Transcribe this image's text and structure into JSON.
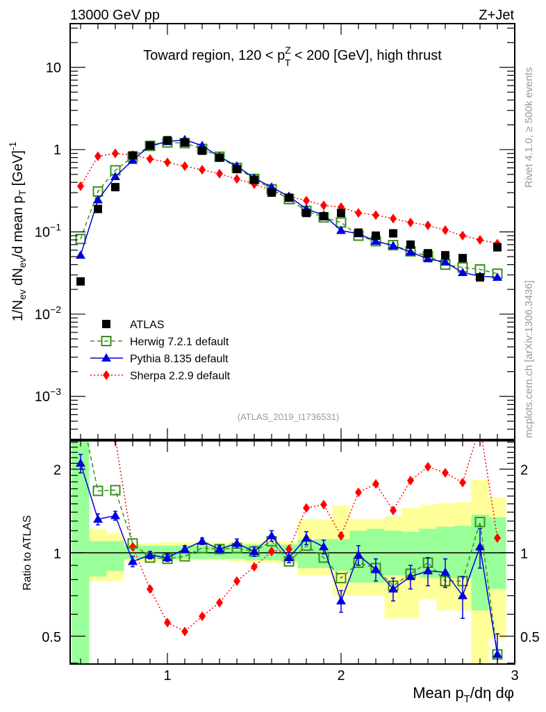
{
  "header": {
    "left_label": "13000 GeV pp",
    "right_label": "Z+Jet"
  },
  "side_labels": {
    "rivet": "Rivet 4.1.0, ≥ 500k events",
    "mcplots": "mcplots.cern.ch [arXiv:1306.3436]"
  },
  "chart_data": [
    {
      "type": "line",
      "panel": "main",
      "title": "Toward region, 120 < p_T^Z < 200 [GeV], high thrust",
      "title_parts": {
        "pre": "Toward region, 120 < p",
        "sup": "Z",
        "sub": "T",
        "post": " < 200 [GeV], high thrust"
      },
      "ylabel": "1/N_ev dN_ev/d mean p_T [GeV]^-1",
      "ylabel_parts": {
        "a": "1/N",
        "a_sub": "ev",
        "b": " dN",
        "b_sub": "ev",
        "c": "/d mean p",
        "c_sub": "T",
        "d": " [GeV]",
        "d_sup": "-1"
      },
      "xlabel": "",
      "yscale": "log",
      "ylim": [
        0.0003,
        34
      ],
      "xlim": [
        0.44,
        3.0
      ],
      "yticks": [
        {
          "value": 10,
          "label": "10",
          "exp": ""
        },
        {
          "value": 1,
          "label": "1",
          "exp": ""
        },
        {
          "value": 0.1,
          "label": "10",
          "exp": "−1"
        },
        {
          "value": 0.01,
          "label": "10",
          "exp": "−2"
        },
        {
          "value": 0.001,
          "label": "10",
          "exp": "−3"
        }
      ],
      "watermark": "(ATLAS_2019_I1736531)",
      "legend_position": "lower-left",
      "x": [
        0.5,
        0.6,
        0.7,
        0.8,
        0.9,
        1.0,
        1.1,
        1.2,
        1.3,
        1.4,
        1.5,
        1.6,
        1.7,
        1.8,
        1.9,
        2.0,
        2.1,
        2.2,
        2.3,
        2.4,
        2.5,
        2.6,
        2.7,
        2.8,
        2.9
      ],
      "series": [
        {
          "name": "ATLAS",
          "style": "data",
          "color": "#000000",
          "values": [
            0.025,
            0.19,
            0.35,
            0.85,
            1.12,
            1.3,
            1.22,
            0.97,
            0.8,
            0.58,
            0.43,
            0.3,
            0.26,
            0.17,
            0.155,
            0.17,
            0.098,
            0.09,
            0.096,
            0.07,
            0.055,
            0.052,
            0.048,
            0.028,
            0.065
          ]
        },
        {
          "name": "Herwig 7.2.1 default",
          "style": "dashed-open-square",
          "color": "#3a8f1a",
          "values": [
            0.082,
            0.31,
            0.56,
            0.82,
            1.11,
            1.22,
            1.2,
            1.02,
            0.82,
            0.6,
            0.44,
            0.33,
            0.25,
            0.18,
            0.15,
            0.13,
            0.09,
            0.077,
            0.069,
            0.058,
            0.051,
            0.04,
            0.037,
            0.035,
            0.031
          ]
        },
        {
          "name": "Pythia 8.135 default",
          "style": "solid-triangle",
          "color": "#0000dd",
          "values": [
            0.052,
            0.245,
            0.47,
            0.74,
            1.12,
            1.25,
            1.32,
            1.12,
            0.82,
            0.63,
            0.45,
            0.35,
            0.27,
            0.19,
            0.16,
            0.104,
            0.095,
            0.077,
            0.068,
            0.057,
            0.047,
            0.043,
            0.032,
            0.029,
            0.028
          ]
        },
        {
          "name": "Sherpa 2.2.9 default",
          "style": "dotted-diamond",
          "color": "#ff0000",
          "values": [
            0.36,
            0.83,
            0.9,
            0.86,
            0.77,
            0.7,
            0.63,
            0.57,
            0.51,
            0.44,
            0.38,
            0.32,
            0.27,
            0.24,
            0.21,
            0.2,
            0.17,
            0.16,
            0.145,
            0.13,
            0.12,
            0.105,
            0.09,
            0.08,
            0.072
          ]
        }
      ]
    },
    {
      "type": "line",
      "panel": "ratio",
      "ylabel": "Ratio to ATLAS",
      "xlabel": "Mean p_T/dη dφ",
      "xlabel_parts": {
        "pre": "Mean p",
        "sub": "T",
        "post": "/dη dφ"
      },
      "yscale": "log",
      "ylim": [
        0.397,
        2.53
      ],
      "xlim": [
        0.44,
        3.0
      ],
      "xticks": [
        {
          "value": 1,
          "label": "1"
        },
        {
          "value": 2,
          "label": "2"
        },
        {
          "value": 3,
          "label": "3"
        }
      ],
      "yticks": [
        {
          "value": 2,
          "label": "2"
        },
        {
          "value": 1,
          "label": "1"
        },
        {
          "value": 0.5,
          "label": "0.5"
        }
      ],
      "x": [
        0.5,
        0.6,
        0.7,
        0.8,
        0.9,
        1.0,
        1.1,
        1.2,
        1.3,
        1.4,
        1.5,
        1.6,
        1.7,
        1.8,
        1.9,
        2.0,
        2.1,
        2.2,
        2.3,
        2.4,
        2.5,
        2.6,
        2.7,
        2.8,
        2.9
      ],
      "bands": {
        "stat": {
          "color": "#99ff99",
          "low": [
            0.3,
            0.82,
            0.86,
            0.95,
            0.95,
            0.95,
            0.95,
            0.95,
            0.95,
            0.95,
            0.94,
            0.94,
            0.93,
            0.88,
            0.88,
            0.86,
            0.78,
            0.78,
            0.83,
            0.83,
            0.81,
            0.81,
            0.81,
            0.62,
            0.74
          ],
          "high": [
            2.6,
            1.1,
            1.1,
            1.06,
            1.06,
            1.06,
            1.06,
            1.06,
            1.06,
            1.07,
            1.07,
            1.08,
            1.07,
            1.11,
            1.12,
            1.12,
            1.2,
            1.22,
            1.2,
            1.19,
            1.22,
            1.24,
            1.25,
            1.37,
            1.34
          ]
        },
        "total": {
          "color": "#ffff99",
          "low": [
            0.3,
            0.79,
            0.79,
            0.93,
            0.93,
            0.94,
            0.94,
            0.94,
            0.94,
            0.93,
            0.92,
            0.92,
            0.91,
            0.83,
            0.83,
            0.7,
            0.7,
            0.7,
            0.58,
            0.58,
            0.68,
            0.62,
            0.62,
            0.3,
            0.49
          ],
          "high": [
            2.6,
            1.22,
            1.18,
            1.08,
            1.08,
            1.09,
            1.09,
            1.09,
            1.09,
            1.09,
            1.09,
            1.1,
            1.1,
            1.32,
            1.32,
            1.48,
            1.32,
            1.32,
            1.35,
            1.45,
            1.49,
            1.51,
            1.52,
            1.83,
            1.58
          ]
        }
      },
      "series": [
        {
          "name": "Herwig 7.2.1 default",
          "style": "dashed-open-square",
          "color": "#3a8f1a",
          "values": [
            3.3,
            1.67,
            1.68,
            1.08,
            0.96,
            0.95,
            0.97,
            1.04,
            1.03,
            1.04,
            1.01,
            1.1,
            0.93,
            1.06,
            0.96,
            0.81,
            0.92,
            0.88,
            0.76,
            0.84,
            0.92,
            0.79,
            0.79,
            1.29,
            0.43
          ]
        },
        {
          "name": "Pythia 8.135 default",
          "style": "solid-triangle",
          "color": "#0000dd",
          "values": [
            2.1,
            1.32,
            1.36,
            0.93,
            0.98,
            0.96,
            1.03,
            1.1,
            1.03,
            1.08,
            1.01,
            1.15,
            0.96,
            1.13,
            1.05,
            0.67,
            0.98,
            0.87,
            0.74,
            0.82,
            0.86,
            0.85,
            0.7,
            1.05,
            0.43
          ],
          "err": [
            0.16,
            0.06,
            0.05,
            0.04,
            0.03,
            0.03,
            0.03,
            0.03,
            0.03,
            0.04,
            0.04,
            0.05,
            0.04,
            0.06,
            0.06,
            0.06,
            0.08,
            0.08,
            0.07,
            0.08,
            0.1,
            0.1,
            0.12,
            0.17,
            0.08
          ]
        },
        {
          "name": "Sherpa 2.2.9 default",
          "style": "dotted-diamond",
          "color": "#ff0000",
          "values": [
            14.4,
            4.37,
            2.57,
            1.05,
            0.74,
            0.56,
            0.52,
            0.59,
            0.66,
            0.79,
            0.89,
            1.01,
            1.03,
            1.45,
            1.49,
            1.15,
            1.65,
            1.77,
            1.42,
            1.82,
            2.04,
            1.94,
            1.79,
            2.85,
            1.13
          ]
        }
      ]
    }
  ],
  "colors": {
    "atlas": "#000000",
    "herwig": "#3a8f1a",
    "pythia": "#0000dd",
    "sherpa": "#ff0000",
    "stat_band": "#99ff99",
    "total_band": "#ffff99",
    "side_text": "#999999"
  }
}
